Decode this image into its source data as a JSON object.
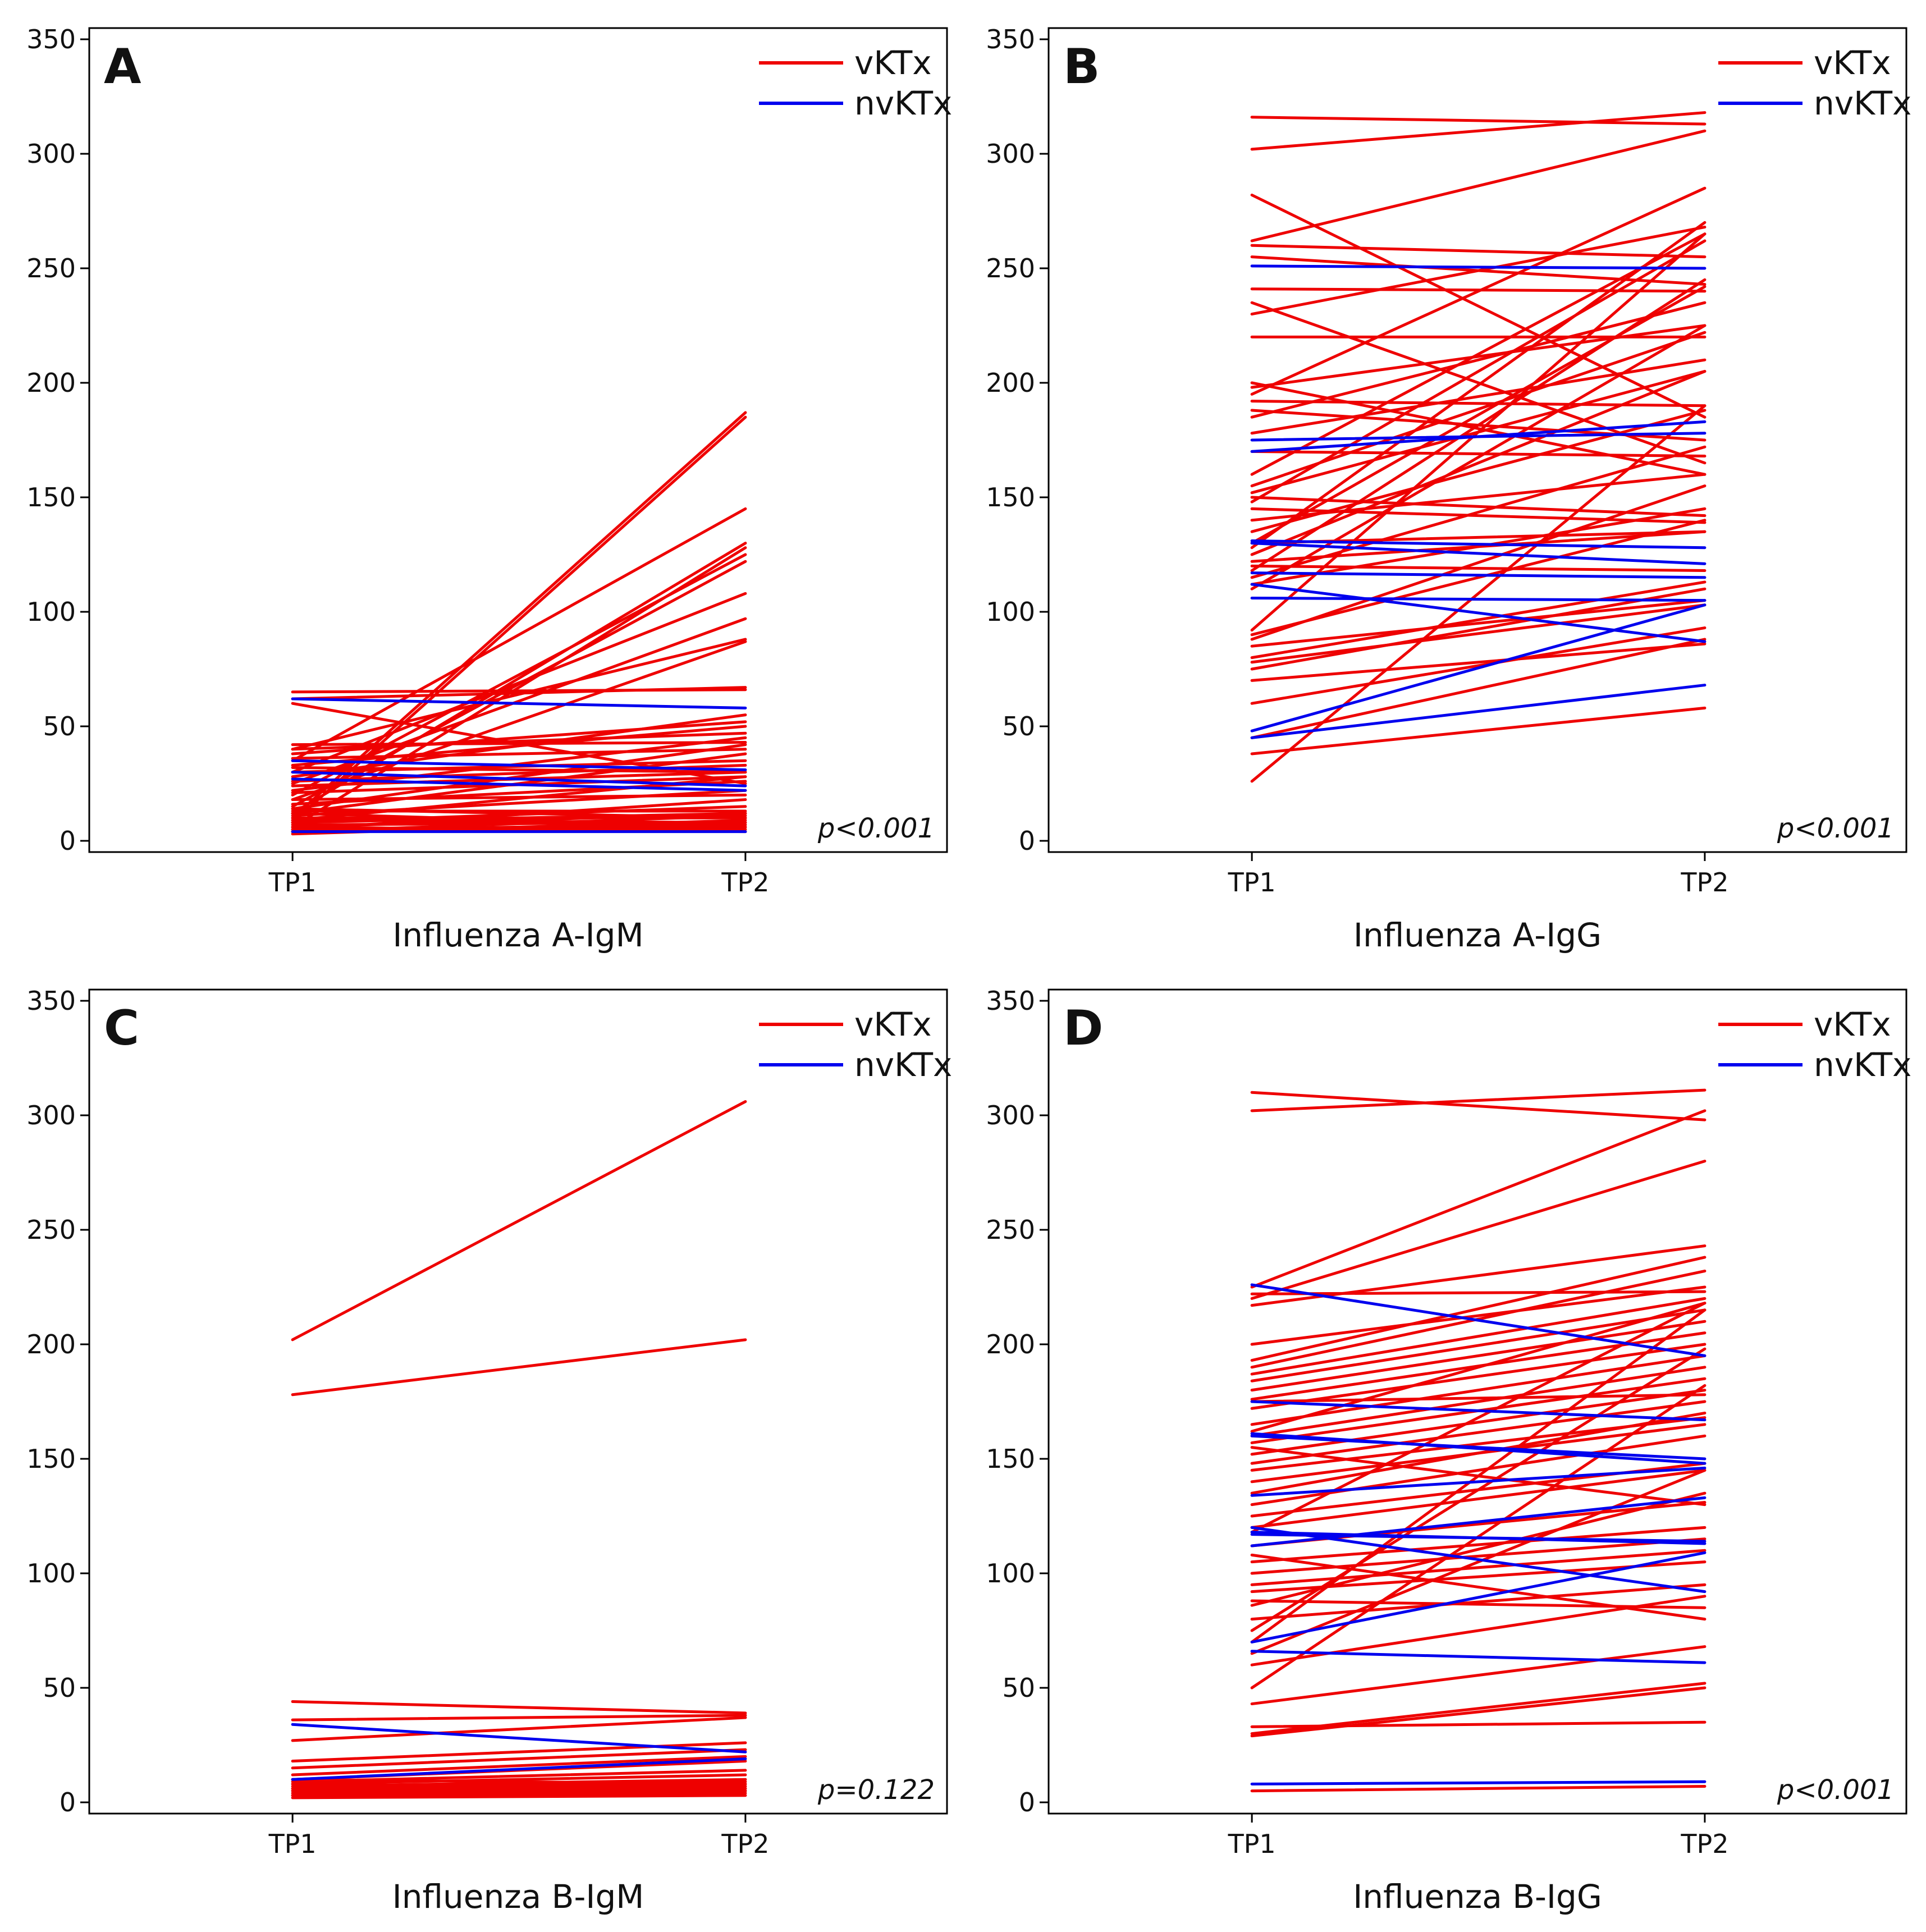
{
  "colors": {
    "vKTx": "#ee0000",
    "nvKTx": "#0000ee"
  },
  "chart_data": [
    {
      "type": "line",
      "panel": "A",
      "xlabel": "Influenza A-IgM",
      "categories": [
        "TP1",
        "TP2"
      ],
      "ylim": [
        0,
        350
      ],
      "yticks": [
        0,
        50,
        100,
        150,
        200,
        250,
        300,
        350
      ],
      "legend": [
        "vKTx",
        "nvKTx"
      ],
      "pvalue": "p<0.001",
      "series": [
        {
          "name": "vKTx",
          "values": [
            [
              10,
              187
            ],
            [
              8,
              185
            ],
            [
              35,
              145
            ],
            [
              12,
              130
            ],
            [
              6,
              128
            ],
            [
              20,
              125
            ],
            [
              15,
              122
            ],
            [
              30,
              108
            ],
            [
              25,
              97
            ],
            [
              40,
              88
            ],
            [
              18,
              87
            ],
            [
              62,
              67
            ],
            [
              65,
              66
            ],
            [
              28,
              55
            ],
            [
              38,
              52
            ],
            [
              33,
              50
            ],
            [
              22,
              45
            ],
            [
              42,
              43
            ],
            [
              14,
              42
            ],
            [
              36,
              40
            ],
            [
              12,
              38
            ],
            [
              30,
              35
            ],
            [
              26,
              33
            ],
            [
              24,
              30
            ],
            [
              9,
              28
            ],
            [
              16,
              26
            ],
            [
              60,
              25
            ],
            [
              11,
              22
            ],
            [
              5,
              18
            ],
            [
              8,
              15
            ],
            [
              13,
              13
            ],
            [
              6,
              12
            ],
            [
              4,
              11
            ],
            [
              10,
              10
            ],
            [
              3,
              9
            ],
            [
              7,
              8
            ],
            [
              5,
              7
            ],
            [
              12,
              6
            ],
            [
              4,
              5
            ],
            [
              6,
              4
            ],
            [
              8,
              12
            ],
            [
              14,
              10
            ],
            [
              9,
              8
            ],
            [
              4,
              6
            ],
            [
              18,
              20
            ],
            [
              32,
              30
            ],
            [
              40,
              47
            ],
            [
              21,
              28
            ]
          ]
        },
        {
          "name": "nvKTx",
          "values": [
            [
              62,
              58
            ],
            [
              35,
              31
            ],
            [
              30,
              24
            ],
            [
              27,
              22
            ],
            [
              4,
              4
            ]
          ]
        }
      ]
    },
    {
      "type": "line",
      "panel": "B",
      "xlabel": "Influenza A-IgG",
      "categories": [
        "TP1",
        "TP2"
      ],
      "ylim": [
        0,
        350
      ],
      "yticks": [
        0,
        50,
        100,
        150,
        200,
        250,
        300,
        350
      ],
      "legend": [
        "vKTx",
        "nvKTx"
      ],
      "pvalue": "p<0.001",
      "series": [
        {
          "name": "vKTx",
          "values": [
            [
              316,
              313
            ],
            [
              302,
              318
            ],
            [
              282,
              185
            ],
            [
              262,
              310
            ],
            [
              260,
              255
            ],
            [
              255,
              243
            ],
            [
              241,
              240
            ],
            [
              235,
              165
            ],
            [
              230,
              268
            ],
            [
              220,
              220
            ],
            [
              200,
              160
            ],
            [
              198,
              225
            ],
            [
              195,
              285
            ],
            [
              192,
              190
            ],
            [
              188,
              175
            ],
            [
              185,
              235
            ],
            [
              178,
              210
            ],
            [
              170,
              168
            ],
            [
              160,
              265
            ],
            [
              155,
              222
            ],
            [
              152,
              205
            ],
            [
              150,
              142
            ],
            [
              148,
              262
            ],
            [
              145,
              139
            ],
            [
              140,
              160
            ],
            [
              135,
              188
            ],
            [
              130,
              135
            ],
            [
              128,
              270
            ],
            [
              125,
              205
            ],
            [
              122,
              135
            ],
            [
              118,
              245
            ],
            [
              115,
              172
            ],
            [
              112,
              145
            ],
            [
              110,
              225
            ],
            [
              92,
              265
            ],
            [
              90,
              140
            ],
            [
              88,
              155
            ],
            [
              85,
              105
            ],
            [
              80,
              113
            ],
            [
              75,
              110
            ],
            [
              60,
              93
            ],
            [
              45,
              88
            ],
            [
              38,
              58
            ],
            [
              26,
              190
            ],
            [
              70,
              86
            ],
            [
              78,
              103
            ],
            [
              130,
              242
            ],
            [
              120,
              118
            ]
          ]
        },
        {
          "name": "nvKTx",
          "values": [
            [
              251,
              250
            ],
            [
              175,
              178
            ],
            [
              170,
              183
            ],
            [
              131,
              128
            ],
            [
              130,
              121
            ],
            [
              117,
              115
            ],
            [
              106,
              105
            ],
            [
              112,
              87
            ],
            [
              48,
              103
            ],
            [
              45,
              68
            ]
          ]
        }
      ]
    },
    {
      "type": "line",
      "panel": "C",
      "xlabel": "Influenza B-IgM",
      "categories": [
        "TP1",
        "TP2"
      ],
      "ylim": [
        0,
        350
      ],
      "yticks": [
        0,
        50,
        100,
        150,
        200,
        250,
        300,
        350
      ],
      "legend": [
        "vKTx",
        "nvKTx"
      ],
      "pvalue": "p=0.122",
      "series": [
        {
          "name": "vKTx",
          "values": [
            [
              202,
              306
            ],
            [
              178,
              202
            ],
            [
              44,
              39
            ],
            [
              36,
              38
            ],
            [
              27,
              37
            ],
            [
              18,
              26
            ],
            [
              15,
              23
            ],
            [
              12,
              20
            ],
            [
              10,
              18
            ],
            [
              9,
              14
            ],
            [
              8,
              12
            ],
            [
              7,
              10
            ],
            [
              6,
              9
            ],
            [
              5,
              8
            ],
            [
              5,
              7
            ],
            [
              4,
              6
            ],
            [
              3,
              5
            ],
            [
              3,
              4
            ],
            [
              2,
              3
            ],
            [
              10,
              8
            ],
            [
              8,
              6
            ],
            [
              6,
              5
            ]
          ]
        },
        {
          "name": "nvKTx",
          "values": [
            [
              34,
              22
            ],
            [
              10,
              19
            ]
          ]
        }
      ]
    },
    {
      "type": "line",
      "panel": "D",
      "xlabel": "Influenza B-IgG",
      "categories": [
        "TP1",
        "TP2"
      ],
      "ylim": [
        0,
        350
      ],
      "yticks": [
        0,
        50,
        100,
        150,
        200,
        250,
        300,
        350
      ],
      "legend": [
        "vKTx",
        "nvKTx"
      ],
      "pvalue": "p<0.001",
      "series": [
        {
          "name": "vKTx",
          "values": [
            [
              310,
              298
            ],
            [
              302,
              311
            ],
            [
              225,
              302
            ],
            [
              220,
              280
            ],
            [
              217,
              243
            ],
            [
              200,
              225
            ],
            [
              193,
              238
            ],
            [
              187,
              220
            ],
            [
              184,
              215
            ],
            [
              180,
              210
            ],
            [
              176,
              205
            ],
            [
              172,
              200
            ],
            [
              165,
              195
            ],
            [
              160,
              190
            ],
            [
              157,
              185
            ],
            [
              152,
              180
            ],
            [
              148,
              175
            ],
            [
              145,
              168
            ],
            [
              140,
              165
            ],
            [
              135,
              170
            ],
            [
              130,
              160
            ],
            [
              125,
              148
            ],
            [
              120,
              145
            ],
            [
              112,
              131
            ],
            [
              105,
              120
            ],
            [
              100,
              115
            ],
            [
              95,
              110
            ],
            [
              92,
              105
            ],
            [
              88,
              85
            ],
            [
              80,
              95
            ],
            [
              75,
              198
            ],
            [
              70,
              215
            ],
            [
              65,
              145
            ],
            [
              60,
              90
            ],
            [
              50,
              182
            ],
            [
              43,
              68
            ],
            [
              33,
              35
            ],
            [
              30,
              52
            ],
            [
              29,
              50
            ],
            [
              5,
              7
            ],
            [
              155,
              130
            ],
            [
              162,
              218
            ],
            [
              222,
              223
            ],
            [
              190,
              232
            ],
            [
              108,
              80
            ],
            [
              86,
              135
            ],
            [
              175,
              178
            ],
            [
              118,
              218
            ]
          ]
        },
        {
          "name": "nvKTx",
          "values": [
            [
              226,
              195
            ],
            [
              175,
              167
            ],
            [
              161,
              148
            ],
            [
              160,
              150
            ],
            [
              134,
              146
            ],
            [
              120,
              92
            ],
            [
              118,
              113
            ],
            [
              117,
              114
            ],
            [
              70,
              109
            ],
            [
              66,
              61
            ],
            [
              8,
              9
            ],
            [
              112,
              133
            ]
          ]
        }
      ]
    }
  ]
}
